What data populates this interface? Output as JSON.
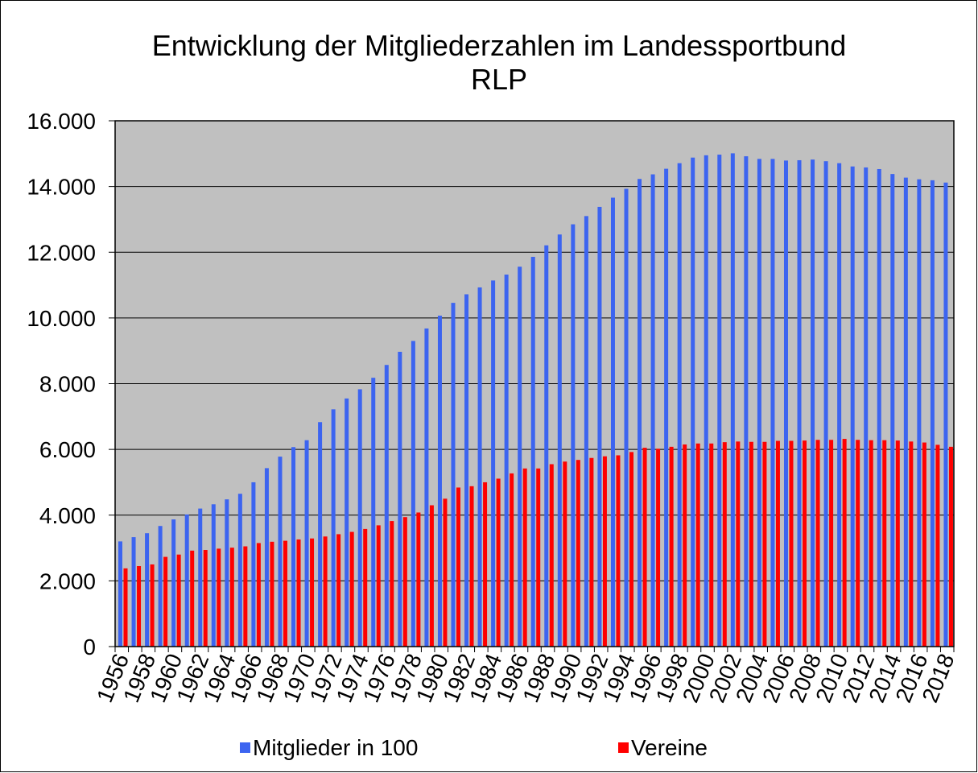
{
  "chart_data": {
    "type": "bar",
    "title": "Entwicklung der Mitgliederzahlen im Landessportbund RLP",
    "categories": [
      "1956",
      null,
      "1958",
      null,
      "1960",
      null,
      "1962",
      null,
      "1964",
      null,
      "1966",
      null,
      "1968",
      null,
      "1970",
      null,
      "1972",
      null,
      "1974",
      null,
      "1976",
      null,
      "1978",
      null,
      "1980",
      null,
      "1982",
      null,
      "1984",
      null,
      "1986",
      null,
      "1988",
      null,
      "1990",
      null,
      "1992",
      null,
      "1994",
      null,
      "1996",
      null,
      "1998",
      null,
      "2000",
      null,
      "2002",
      null,
      "2004",
      null,
      "2006",
      null,
      "2008",
      null,
      "2010",
      null,
      "2012",
      null,
      "2014",
      null,
      "2016",
      null,
      "2018"
    ],
    "series": [
      {
        "name": "Mitglieder in 100",
        "color": "#3c64f0",
        "values": [
          3200,
          3330,
          3450,
          3670,
          3870,
          4020,
          4200,
          4330,
          4480,
          4650,
          5000,
          5430,
          5780,
          6070,
          6280,
          6830,
          7220,
          7550,
          7830,
          8180,
          8570,
          8970,
          9300,
          9680,
          10070,
          10460,
          10720,
          10930,
          11140,
          11320,
          11560,
          11860,
          12210,
          12540,
          12850,
          13100,
          13380,
          13660,
          13930,
          14230,
          14370,
          14540,
          14710,
          14880,
          14950,
          14970,
          15010,
          14920,
          14840,
          14840,
          14790,
          14800,
          14820,
          14770,
          14710,
          14610,
          14580,
          14530,
          14380,
          14270,
          14220,
          14190,
          14120
        ]
      },
      {
        "name": "Vereine",
        "color": "#ff0000",
        "values": [
          2380,
          2450,
          2500,
          2730,
          2800,
          2920,
          2940,
          2980,
          3010,
          3050,
          3150,
          3190,
          3220,
          3260,
          3290,
          3350,
          3420,
          3490,
          3580,
          3690,
          3820,
          3940,
          4080,
          4300,
          4500,
          4840,
          4880,
          5000,
          5110,
          5270,
          5420,
          5420,
          5550,
          5630,
          5680,
          5740,
          5790,
          5820,
          5920,
          6050,
          6020,
          6080,
          6150,
          6180,
          6180,
          6220,
          6240,
          6230,
          6230,
          6260,
          6260,
          6270,
          6290,
          6290,
          6320,
          6290,
          6280,
          6280,
          6270,
          6240,
          6210,
          6140,
          6080
        ]
      }
    ],
    "ylim": [
      0,
      16000
    ],
    "yticks": [
      0,
      {
        "value": 2000,
        "label": "2.000"
      },
      {
        "value": 4000,
        "label": "4.000"
      },
      {
        "value": 6000,
        "label": "6.000"
      },
      {
        "value": 8000,
        "label": "8.000"
      },
      {
        "value": 10000,
        "label": "10.000"
      },
      {
        "value": 12000,
        "label": "12.000"
      },
      {
        "value": 14000,
        "label": "14.000"
      },
      {
        "value": 16000,
        "label": "16.000"
      }
    ],
    "grid": true,
    "legend": "bottom"
  }
}
